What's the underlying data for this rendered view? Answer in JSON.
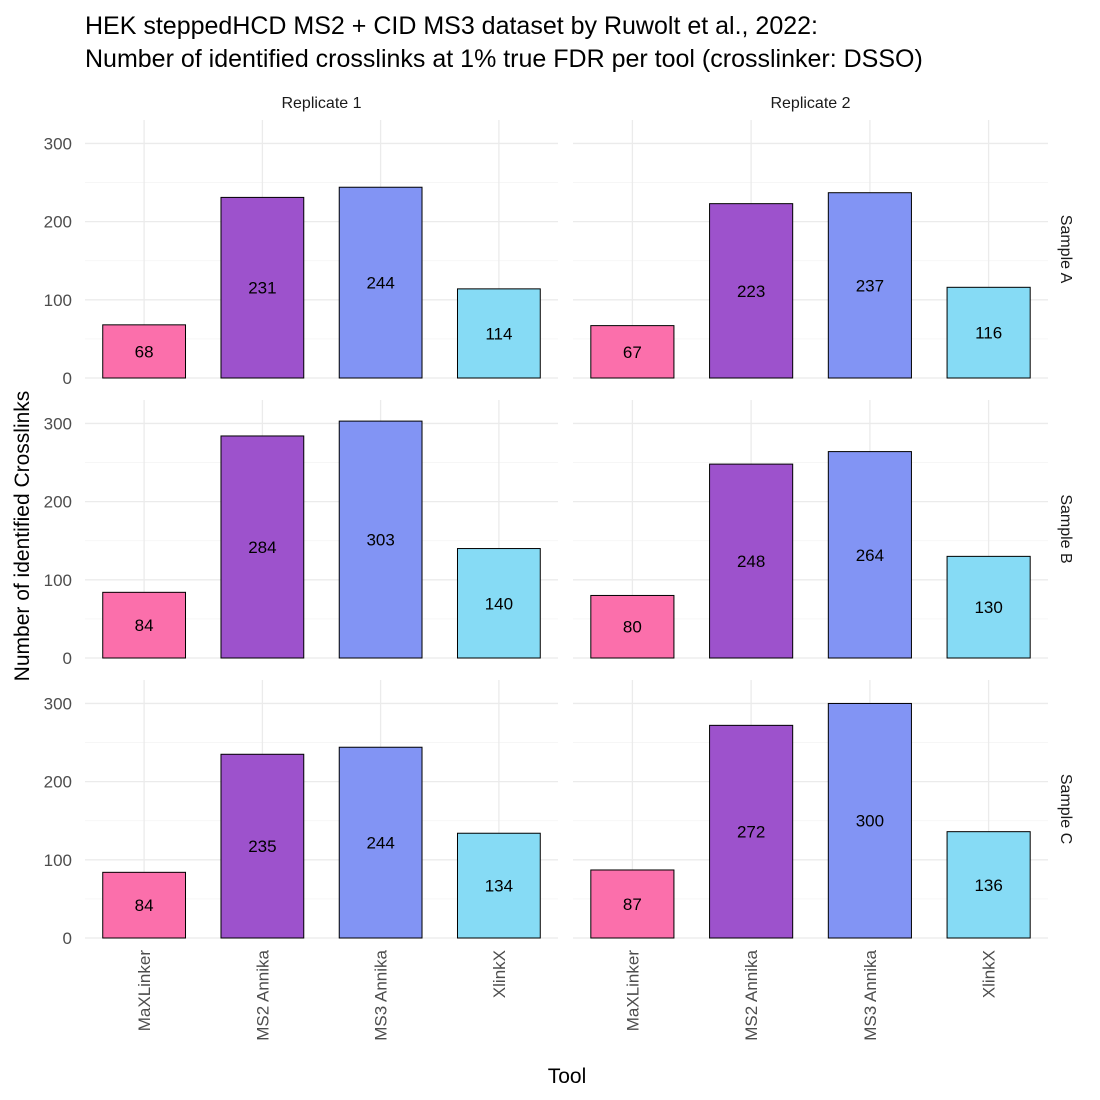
{
  "chart_data": {
    "type": "bar",
    "title": [
      "HEK steppedHCD MS2 + CID MS3 dataset by Ruwolt et al., 2022:",
      "Number of identified crosslinks at 1% true FDR per tool (crosslinker: DSSO)"
    ],
    "xlabel": "Tool",
    "ylabel": "Number of identified Crosslinks",
    "categories": [
      "MaXLinker",
      "MS2 Annika",
      "MS3 Annika",
      "XlinkX"
    ],
    "colors": [
      "#fb6fab",
      "#9d52cc",
      "#8294f4",
      "#86dbf5"
    ],
    "ylim": [
      0,
      330
    ],
    "yticks": [
      0,
      100,
      200,
      300
    ],
    "grid": true,
    "facet_columns": [
      "Replicate 1",
      "Replicate 2"
    ],
    "facet_rows": [
      "Sample A",
      "Sample B",
      "Sample C"
    ],
    "panels": [
      {
        "column": "Replicate 1",
        "row": "Sample A",
        "values": [
          68,
          231,
          244,
          114
        ]
      },
      {
        "column": "Replicate 2",
        "row": "Sample A",
        "values": [
          67,
          223,
          237,
          116
        ]
      },
      {
        "column": "Replicate 1",
        "row": "Sample B",
        "values": [
          84,
          284,
          303,
          140
        ]
      },
      {
        "column": "Replicate 2",
        "row": "Sample B",
        "values": [
          80,
          248,
          264,
          130
        ]
      },
      {
        "column": "Replicate 1",
        "row": "Sample C",
        "values": [
          84,
          235,
          244,
          134
        ]
      },
      {
        "column": "Replicate 2",
        "row": "Sample C",
        "values": [
          87,
          272,
          300,
          136
        ]
      }
    ]
  }
}
